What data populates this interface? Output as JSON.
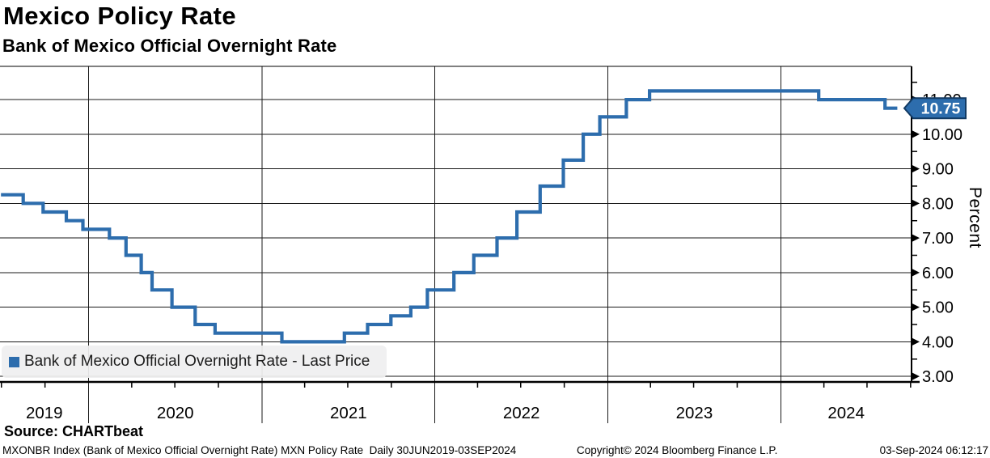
{
  "header": {
    "title": "Mexico Policy Rate",
    "subtitle": "Bank of Mexico Official Overnight Rate"
  },
  "legend": {
    "label": "Bank of Mexico Official Overnight Rate - Last Price",
    "marker_color": "#2d6dad"
  },
  "source": {
    "label": "Source: CHARTbeat"
  },
  "footer": {
    "left": "MXONBR Index (Bank of Mexico Official Overnight Rate) MXN Policy Rate  Daily 30JUN2019-03SEP2024",
    "center": "Copyright© 2024 Bloomberg Finance L.P.",
    "right": "03-Sep-2024 06:12:17"
  },
  "chart_data": {
    "type": "line",
    "step": true,
    "title": "Mexico Policy Rate",
    "subtitle": "Bank of Mexico Official Overnight Rate",
    "xlabel": "",
    "ylabel": "Percent",
    "grid": true,
    "legend_position": "bottom-left",
    "x_domain": [
      "2019-06-28",
      "2024-10-03"
    ],
    "x_end": "2024-09-03",
    "y_domain": [
      2.84,
      11.96
    ],
    "y_axis": {
      "side": "right",
      "major_ticks": [
        3.0,
        4.0,
        5.0,
        6.0,
        7.0,
        8.0,
        9.0,
        10.0,
        11.0
      ],
      "minor_tick_step": 0.5,
      "tick_label_format": "0.00"
    },
    "x_axis": {
      "year_labels": [
        "2019",
        "2020",
        "2021",
        "2022",
        "2023",
        "2024"
      ],
      "year_divider_dates": [
        "2020-01-01",
        "2021-01-01",
        "2022-01-01",
        "2023-01-01",
        "2024-01-01"
      ],
      "minor_tick_months": [
        4,
        7,
        10
      ]
    },
    "last_price": {
      "label": "10.75",
      "value": 10.75,
      "badge_fill": "#2d6dad",
      "badge_border": "#123a63",
      "badge_text_color": "#ffffff"
    },
    "series": [
      {
        "name": "Bank of Mexico Official Overnight Rate - Last Price",
        "color": "#2d6dad",
        "points": [
          [
            "2019-06-30",
            8.25
          ],
          [
            "2019-08-16",
            8.0
          ],
          [
            "2019-09-27",
            7.75
          ],
          [
            "2019-11-15",
            7.5
          ],
          [
            "2019-12-20",
            7.25
          ],
          [
            "2020-02-14",
            7.0
          ],
          [
            "2020-03-20",
            6.5
          ],
          [
            "2020-04-21",
            6.0
          ],
          [
            "2020-05-14",
            5.5
          ],
          [
            "2020-06-25",
            5.0
          ],
          [
            "2020-08-13",
            4.5
          ],
          [
            "2020-09-24",
            4.25
          ],
          [
            "2021-02-12",
            4.0
          ],
          [
            "2021-06-24",
            4.25
          ],
          [
            "2021-08-12",
            4.5
          ],
          [
            "2021-09-30",
            4.75
          ],
          [
            "2021-11-11",
            5.0
          ],
          [
            "2021-12-16",
            5.5
          ],
          [
            "2022-02-10",
            6.0
          ],
          [
            "2022-03-24",
            6.5
          ],
          [
            "2022-05-12",
            7.0
          ],
          [
            "2022-06-23",
            7.75
          ],
          [
            "2022-08-11",
            8.5
          ],
          [
            "2022-09-29",
            9.25
          ],
          [
            "2022-11-10",
            10.0
          ],
          [
            "2022-12-15",
            10.5
          ],
          [
            "2023-02-09",
            11.0
          ],
          [
            "2023-03-30",
            11.25
          ],
          [
            "2024-03-21",
            11.0
          ],
          [
            "2024-08-08",
            10.75
          ]
        ]
      }
    ],
    "colors": {
      "line": "#2d6dad",
      "grid": "#1a1a1a",
      "axis": "#000000",
      "legend_bg": "#efeff0"
    }
  }
}
